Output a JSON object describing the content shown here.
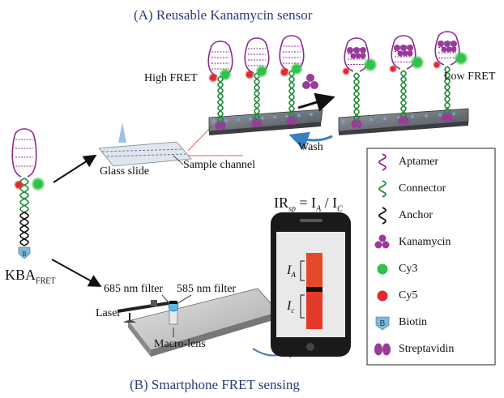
{
  "colors": {
    "title": "#2a3a7a",
    "aptamer": "#8b2a8b",
    "connector": "#1f8a3a",
    "anchor": "#111111",
    "kanamycin": "#9a3a9a",
    "cy3": "#2ec24a",
    "cy5": "#e12a2a",
    "biotin": "#7fb8d8",
    "streptavidin": "#9a3a9a",
    "phone_band": "#e34a2a"
  },
  "title_a": "(A) Reusable Kanamycin sensor",
  "title_b": "(B) Smartphone  FRET sensing",
  "labels": {
    "high_fret": "High FRET",
    "low_fret": "Low FRET",
    "wash": "Wash",
    "glass_slide": "Glass slide",
    "sample_channel": "Sample channel",
    "kba_main": "KBA",
    "kba_sub": "FRET",
    "filter_685": "685 nm filter",
    "filter_585": "585 nm filter",
    "laser": "Laser",
    "macro_lens": "Macro-lens",
    "biotin_letter": "B"
  },
  "formula": {
    "lhs_main": "IR",
    "lhs_sub": "sp",
    "eq": " = I",
    "a_sub": "A",
    "slash": " / I",
    "c_sub": "C"
  },
  "phone": {
    "ia_main": "I",
    "ia_sub": "A",
    "ic_main": "I",
    "ic_sub": "c"
  },
  "legend": [
    {
      "icon": "aptamer-icon",
      "label": "Aptamer"
    },
    {
      "icon": "connector-icon",
      "label": "Connector"
    },
    {
      "icon": "anchor-icon",
      "label": "Anchor"
    },
    {
      "icon": "kanamycin-icon",
      "label": "Kanamycin"
    },
    {
      "icon": "cy3-icon",
      "label": "Cy3"
    },
    {
      "icon": "cy5-icon",
      "label": "Cy5"
    },
    {
      "icon": "biotin-icon",
      "label": "Biotin"
    },
    {
      "icon": "streptavidin-icon",
      "label": "Streptavidin"
    }
  ]
}
